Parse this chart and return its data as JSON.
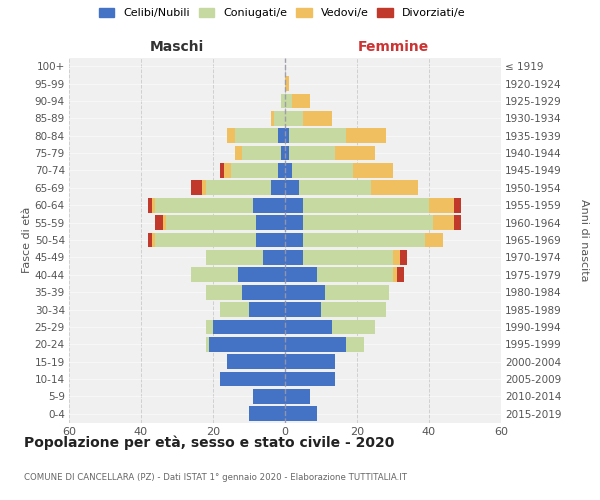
{
  "age_groups": [
    "0-4",
    "5-9",
    "10-14",
    "15-19",
    "20-24",
    "25-29",
    "30-34",
    "35-39",
    "40-44",
    "45-49",
    "50-54",
    "55-59",
    "60-64",
    "65-69",
    "70-74",
    "75-79",
    "80-84",
    "85-89",
    "90-94",
    "95-99",
    "100+"
  ],
  "birth_years": [
    "2015-2019",
    "2010-2014",
    "2005-2009",
    "2000-2004",
    "1995-1999",
    "1990-1994",
    "1985-1989",
    "1980-1984",
    "1975-1979",
    "1970-1974",
    "1965-1969",
    "1960-1964",
    "1955-1959",
    "1950-1954",
    "1945-1949",
    "1940-1944",
    "1935-1939",
    "1930-1934",
    "1925-1929",
    "1920-1924",
    "≤ 1919"
  ],
  "male_celibe": [
    10,
    9,
    18,
    16,
    21,
    20,
    10,
    12,
    13,
    6,
    8,
    8,
    9,
    4,
    2,
    1,
    2,
    0,
    0,
    0,
    0
  ],
  "male_coniugato": [
    0,
    0,
    0,
    0,
    1,
    2,
    8,
    10,
    13,
    16,
    28,
    25,
    27,
    18,
    13,
    11,
    12,
    3,
    1,
    0,
    0
  ],
  "male_vedovo": [
    0,
    0,
    0,
    0,
    0,
    0,
    0,
    0,
    0,
    0,
    1,
    1,
    1,
    1,
    2,
    2,
    2,
    1,
    0,
    0,
    0
  ],
  "male_divorziato": [
    0,
    0,
    0,
    0,
    0,
    0,
    0,
    0,
    0,
    0,
    1,
    2,
    1,
    3,
    1,
    0,
    0,
    0,
    0,
    0,
    0
  ],
  "female_celibe": [
    9,
    7,
    14,
    14,
    17,
    13,
    10,
    11,
    9,
    5,
    5,
    5,
    5,
    4,
    2,
    1,
    1,
    0,
    0,
    0,
    0
  ],
  "female_coniugato": [
    0,
    0,
    0,
    0,
    5,
    12,
    18,
    18,
    21,
    25,
    34,
    36,
    35,
    20,
    17,
    13,
    16,
    5,
    2,
    0,
    0
  ],
  "female_vedovo": [
    0,
    0,
    0,
    0,
    0,
    0,
    0,
    0,
    1,
    2,
    5,
    6,
    7,
    13,
    11,
    11,
    11,
    8,
    5,
    1,
    0
  ],
  "female_divorziato": [
    0,
    0,
    0,
    0,
    0,
    0,
    0,
    0,
    2,
    2,
    0,
    2,
    2,
    0,
    0,
    0,
    0,
    0,
    0,
    0,
    0
  ],
  "color_celibe": "#4472c4",
  "color_coniugato": "#c5d9a0",
  "color_vedovo": "#f0c060",
  "color_divorziato": "#c0392b",
  "title": "Popolazione per età, sesso e stato civile - 2020",
  "subtitle": "COMUNE DI CANCELLARA (PZ) - Dati ISTAT 1° gennaio 2020 - Elaborazione TUTTITALIA.IT",
  "xlabel_left": "Maschi",
  "xlabel_right": "Femmine",
  "ylabel_left": "Fasce di età",
  "ylabel_right": "Anni di nascita",
  "xlim": 60,
  "bg_color": "#f0f0f0",
  "grid_color": "#cccccc"
}
